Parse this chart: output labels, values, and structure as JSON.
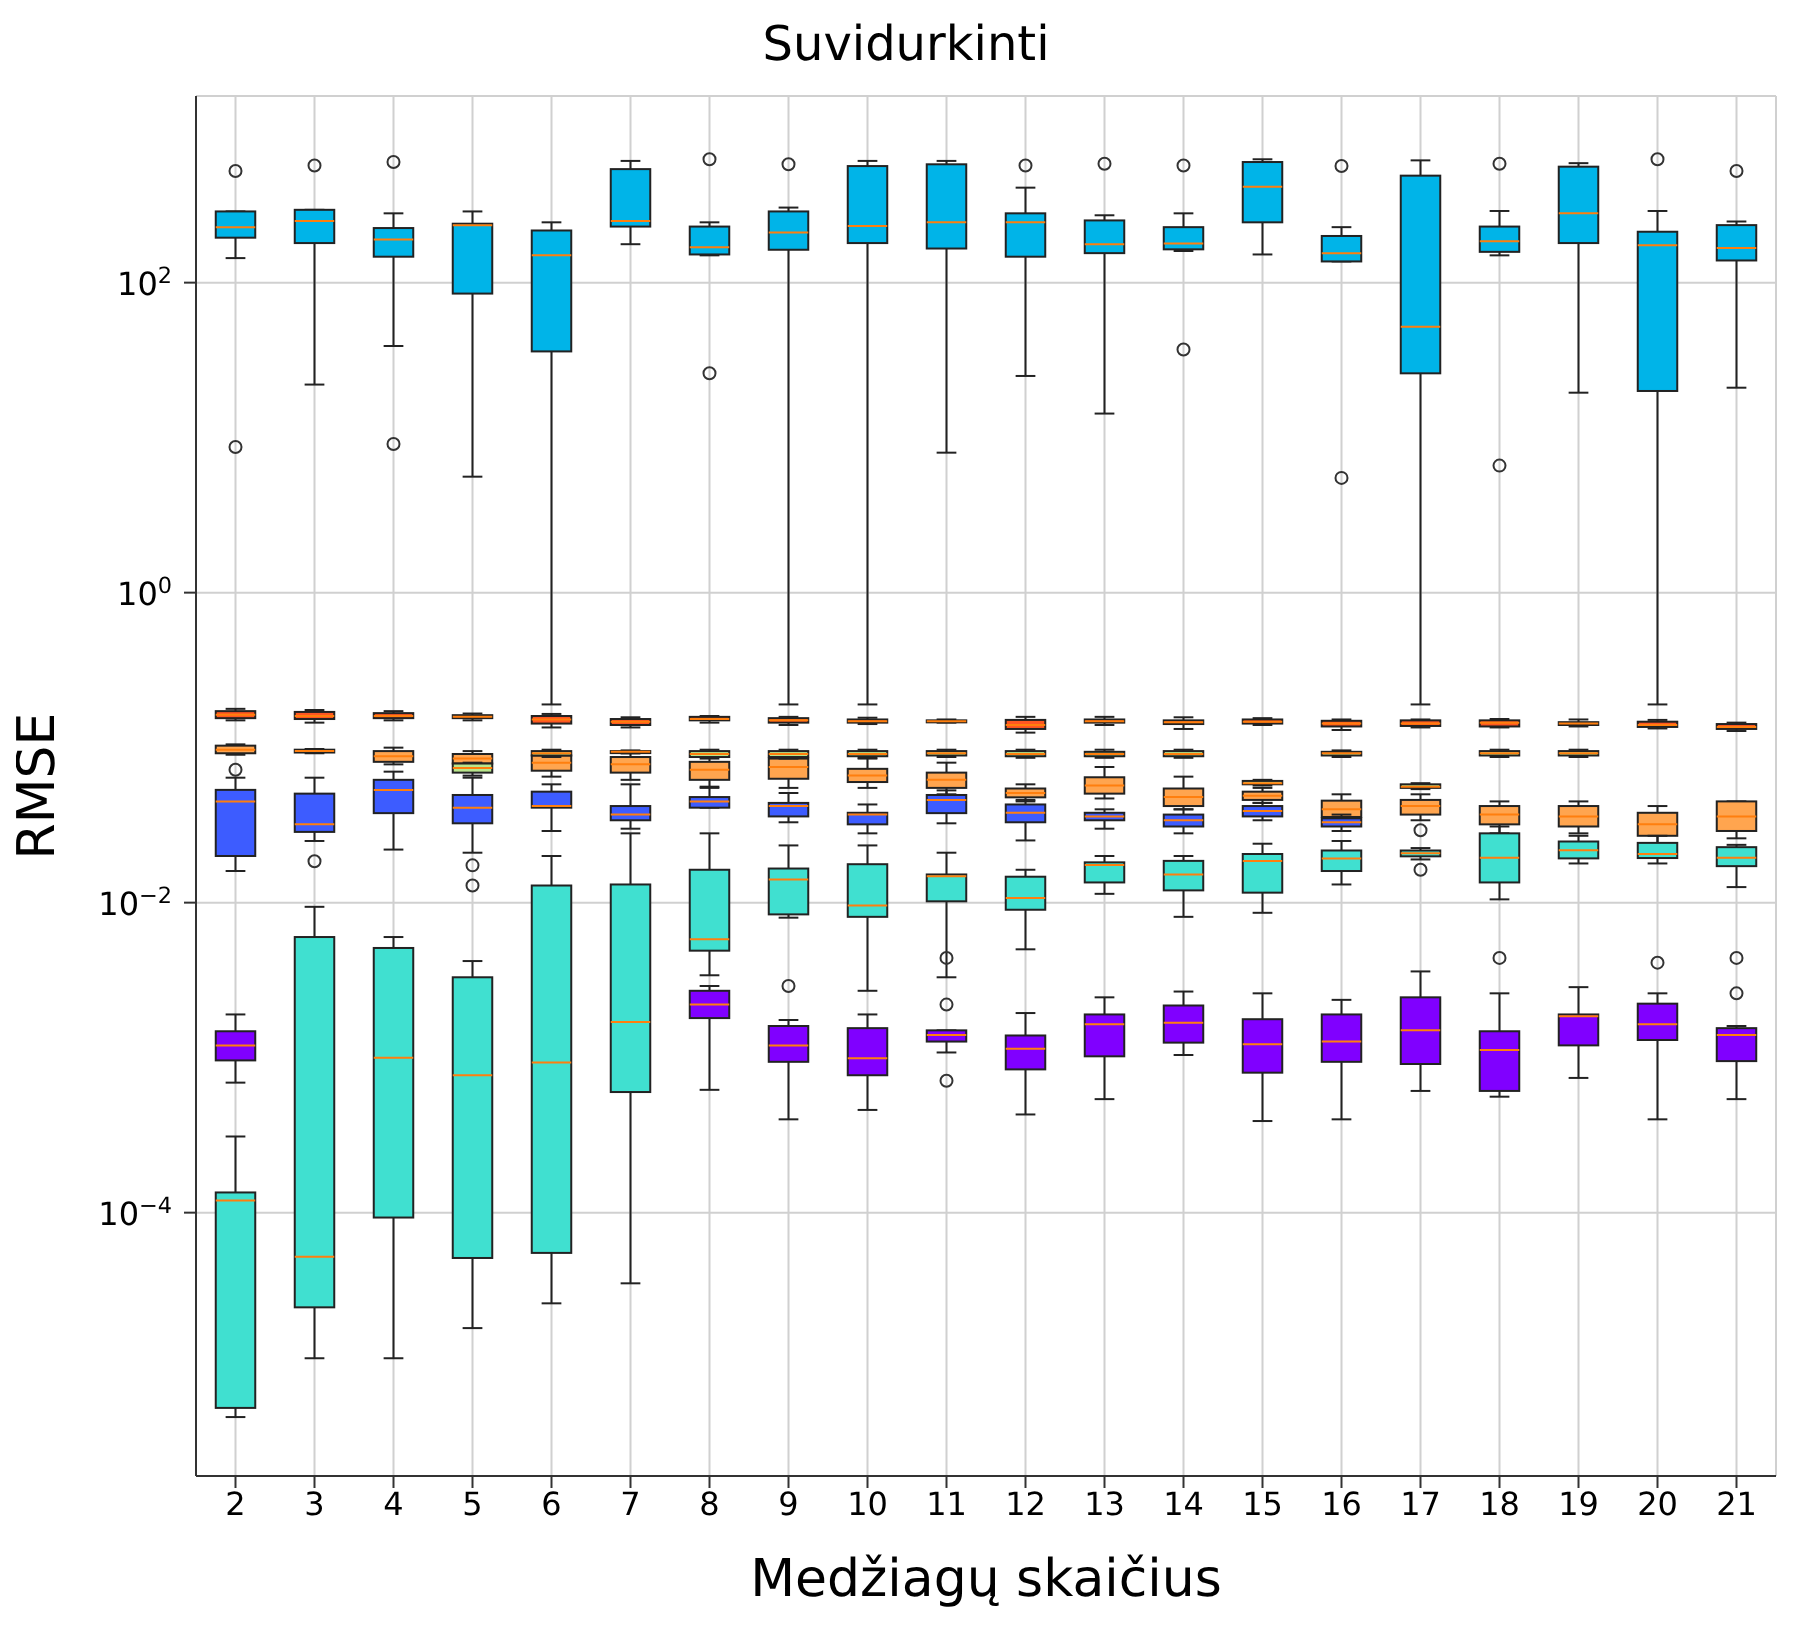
{
  "chart_data": {
    "type": "box",
    "title": "Suvidurkinti",
    "xlabel": "Medžiagų skaičius",
    "ylabel": "RMSE",
    "categories": [
      "2",
      "3",
      "4",
      "5",
      "6",
      "7",
      "8",
      "9",
      "10",
      "11",
      "12",
      "13",
      "14",
      "15",
      "16",
      "17",
      "18",
      "19",
      "20",
      "21"
    ],
    "log": "y",
    "grid": true,
    "ylim": [
      2e-06,
      1600
    ],
    "yticks": [
      {
        "value": 0.0001,
        "label": "10$^{−4}$"
      },
      {
        "value": 0.01,
        "label": "10$^{−2}$"
      },
      {
        "value": 1,
        "label": "10$^{0}$"
      },
      {
        "value": 100,
        "label": "10$^{2}$"
      }
    ],
    "series": [
      {
        "color": "#00b4e8",
        "boxes": [
          {
            "low": 144,
            "q1": 195,
            "median": 228,
            "q3": 288,
            "high": 288,
            "outliers": [
              525,
              8.7
            ]
          },
          {
            "low": 22,
            "q1": 180,
            "median": 250,
            "q3": 295,
            "high": 295,
            "outliers": [
              570
            ]
          },
          {
            "low": 39,
            "q1": 147,
            "median": 190,
            "q3": 225,
            "high": 280,
            "outliers": [
              600,
              9.1
            ]
          },
          {
            "low": 5.6,
            "q1": 85,
            "median": 235,
            "q3": 240,
            "high": 288
          },
          {
            "low": 0.19,
            "q1": 36,
            "median": 150,
            "q3": 217,
            "high": 245
          },
          {
            "low": 177,
            "q1": 230,
            "median": 250,
            "q3": 540,
            "high": 610
          },
          {
            "low": 150,
            "q1": 152,
            "median": 169,
            "q3": 230,
            "high": 245,
            "outliers": [
              625,
              26
            ]
          },
          {
            "low": 0.19,
            "q1": 163,
            "median": 211,
            "q3": 288,
            "high": 305,
            "outliers": [
              580
            ]
          },
          {
            "low": 0.19,
            "q1": 180,
            "median": 232,
            "q3": 565,
            "high": 610
          },
          {
            "low": 8,
            "q1": 166,
            "median": 245,
            "q3": 580,
            "high": 610
          },
          {
            "low": 25,
            "q1": 147,
            "median": 245,
            "q3": 280,
            "high": 410,
            "outliers": [
              570
            ]
          },
          {
            "low": 14.3,
            "q1": 155,
            "median": 177,
            "q3": 252,
            "high": 272,
            "outliers": [
              585
            ]
          },
          {
            "low": 160,
            "q1": 164,
            "median": 179,
            "q3": 228,
            "high": 280,
            "outliers": [
              570,
              37
            ]
          },
          {
            "low": 152,
            "q1": 245,
            "median": 415,
            "q3": 600,
            "high": 625
          },
          {
            "low": 137,
            "q1": 137,
            "median": 155,
            "q3": 200,
            "high": 228,
            "outliers": [
              565,
              5.5
            ]
          },
          {
            "low": 0.19,
            "q1": 26,
            "median": 52,
            "q3": 490,
            "high": 615
          },
          {
            "low": 150,
            "q1": 158,
            "median": 185,
            "q3": 230,
            "high": 290,
            "outliers": [
              585,
              6.6
            ]
          },
          {
            "low": 19.5,
            "q1": 180,
            "median": 280,
            "q3": 560,
            "high": 590
          },
          {
            "low": 0.19,
            "q1": 20,
            "median": 174,
            "q3": 213,
            "high": 290,
            "outliers": [
              625
            ]
          },
          {
            "low": 21,
            "q1": 139,
            "median": 167,
            "q3": 235,
            "high": 248,
            "outliers": [
              525
            ]
          }
        ]
      },
      {
        "color": "#ff5722",
        "boxes": [
          {
            "low": 0.15,
            "q1": 0.155,
            "median": 0.163,
            "q3": 0.172,
            "high": 0.178
          },
          {
            "low": 0.145,
            "q1": 0.153,
            "median": 0.16,
            "q3": 0.17,
            "high": 0.175
          },
          {
            "low": 0.15,
            "q1": 0.155,
            "median": 0.16,
            "q3": 0.167,
            "high": 0.172
          },
          {
            "low": 0.15,
            "q1": 0.155,
            "median": 0.158,
            "q3": 0.162,
            "high": 0.166
          },
          {
            "low": 0.135,
            "q1": 0.143,
            "median": 0.152,
            "q3": 0.16,
            "high": 0.165
          },
          {
            "low": 0.135,
            "q1": 0.14,
            "median": 0.147,
            "q3": 0.153,
            "high": 0.157
          },
          {
            "low": 0.145,
            "q1": 0.15,
            "median": 0.153,
            "q3": 0.158,
            "high": 0.16
          },
          {
            "low": 0.14,
            "q1": 0.145,
            "median": 0.15,
            "q3": 0.155,
            "high": 0.158
          },
          {
            "low": 0.142,
            "q1": 0.145,
            "median": 0.148,
            "q3": 0.152,
            "high": 0.156
          },
          {
            "low": 0.145,
            "q1": 0.147,
            "median": 0.148,
            "q3": 0.15,
            "high": 0.152
          },
          {
            "low": 0.125,
            "q1": 0.132,
            "median": 0.14,
            "q3": 0.151,
            "high": 0.158
          },
          {
            "low": 0.14,
            "q1": 0.145,
            "median": 0.148,
            "q3": 0.152,
            "high": 0.158
          },
          {
            "low": 0.132,
            "q1": 0.142,
            "median": 0.146,
            "q3": 0.15,
            "high": 0.157
          },
          {
            "low": 0.14,
            "q1": 0.143,
            "median": 0.147,
            "q3": 0.152,
            "high": 0.155
          },
          {
            "low": 0.13,
            "q1": 0.137,
            "median": 0.143,
            "q3": 0.149,
            "high": 0.152
          },
          {
            "low": 0.135,
            "q1": 0.138,
            "median": 0.143,
            "q3": 0.15,
            "high": 0.152
          },
          {
            "low": 0.135,
            "q1": 0.137,
            "median": 0.145,
            "q3": 0.15,
            "high": 0.153
          },
          {
            "low": 0.137,
            "q1": 0.14,
            "median": 0.143,
            "q3": 0.146,
            "high": 0.152
          },
          {
            "low": 0.133,
            "q1": 0.136,
            "median": 0.14,
            "q3": 0.147,
            "high": 0.151
          },
          {
            "low": 0.128,
            "q1": 0.132,
            "median": 0.136,
            "q3": 0.142,
            "high": 0.145
          }
        ]
      },
      {
        "color": "#ffa54f",
        "boxes": [
          {
            "low": 0.09,
            "q1": 0.092,
            "median": 0.097,
            "q3": 0.103,
            "high": 0.105,
            "outliers": [
              0.072
            ]
          },
          {
            "low": 0.092,
            "q1": 0.093,
            "median": 0.095,
            "q3": 0.097,
            "high": 0.098
          },
          {
            "low": 0.078,
            "q1": 0.081,
            "median": 0.088,
            "q3": 0.095,
            "high": 0.1
          },
          {
            "low": 0.077,
            "q1": 0.079,
            "median": 0.085,
            "q3": 0.091,
            "high": 0.095
          },
          {
            "low": 0.065,
            "q1": 0.071,
            "median": 0.08,
            "q3": 0.089,
            "high": 0.095
          },
          {
            "low": 0.062,
            "q1": 0.069,
            "median": 0.078,
            "q3": 0.087,
            "high": 0.092
          },
          {
            "low": 0.056,
            "q1": 0.062,
            "median": 0.072,
            "q3": 0.081,
            "high": 0.09
          },
          {
            "low": 0.055,
            "q1": 0.063,
            "median": 0.075,
            "q3": 0.085,
            "high": 0.09
          },
          {
            "low": 0.055,
            "q1": 0.06,
            "median": 0.066,
            "q3": 0.073,
            "high": 0.085
          },
          {
            "low": 0.05,
            "q1": 0.055,
            "median": 0.062,
            "q3": 0.069,
            "high": 0.08
          },
          {
            "low": 0.045,
            "q1": 0.0478,
            "median": 0.051,
            "q3": 0.0545,
            "high": 0.058
          },
          {
            "low": 0.047,
            "q1": 0.0505,
            "median": 0.057,
            "q3": 0.0644,
            "high": 0.075
          },
          {
            "low": 0.04,
            "q1": 0.042,
            "median": 0.048,
            "q3": 0.0545,
            "high": 0.065
          },
          {
            "low": 0.044,
            "q1": 0.046,
            "median": 0.049,
            "q3": 0.052,
            "high": 0.055
          },
          {
            "low": 0.034,
            "q1": 0.0357,
            "median": 0.04,
            "q3": 0.0455,
            "high": 0.05
          },
          {
            "low": 0.034,
            "q1": 0.037,
            "median": 0.042,
            "q3": 0.046,
            "high": 0.05
          },
          {
            "low": 0.028,
            "q1": 0.032,
            "median": 0.037,
            "q3": 0.042,
            "high": 0.045
          },
          {
            "low": 0.028,
            "q1": 0.031,
            "median": 0.036,
            "q3": 0.042,
            "high": 0.045
          },
          {
            "low": 0.024,
            "q1": 0.027,
            "median": 0.032,
            "q3": 0.038,
            "high": 0.042
          },
          {
            "low": 0.026,
            "q1": 0.029,
            "median": 0.036,
            "q3": 0.045,
            "high": 0.045
          }
        ]
      },
      {
        "color": "#b9e68c",
        "boxes": [
          null,
          null,
          null,
          {
            "low": 0.066,
            "q1": 0.069,
            "median": 0.074,
            "q3": 0.079,
            "high": 0.08
          },
          {
            "low": 0.087,
            "q1": 0.089,
            "median": 0.092,
            "q3": 0.095,
            "high": 0.097
          },
          {
            "low": 0.092,
            "q1": 0.093,
            "median": 0.094,
            "q3": 0.095,
            "high": 0.096
          },
          {
            "low": 0.085,
            "q1": 0.087,
            "median": 0.091,
            "q3": 0.095,
            "high": 0.097
          },
          {
            "low": 0.085,
            "q1": 0.087,
            "median": 0.091,
            "q3": 0.095,
            "high": 0.097
          },
          {
            "low": 0.086,
            "q1": 0.088,
            "median": 0.091,
            "q3": 0.095,
            "high": 0.097
          },
          {
            "low": 0.087,
            "q1": 0.089,
            "median": 0.092,
            "q3": 0.095,
            "high": 0.097
          },
          {
            "low": 0.086,
            "q1": 0.088,
            "median": 0.091,
            "q3": 0.095,
            "high": 0.097
          },
          {
            "low": 0.086,
            "q1": 0.088,
            "median": 0.091,
            "q3": 0.094,
            "high": 0.097
          },
          {
            "low": 0.086,
            "q1": 0.088,
            "median": 0.091,
            "q3": 0.095,
            "high": 0.097
          },
          {
            "low": 0.057,
            "q1": 0.058,
            "median": 0.059,
            "q3": 0.061,
            "high": 0.062
          },
          {
            "low": 0.087,
            "q1": 0.089,
            "median": 0.092,
            "q3": 0.094,
            "high": 0.096
          },
          {
            "low": 0.054,
            "q1": 0.055,
            "median": 0.056,
            "q3": 0.058,
            "high": 0.059
          },
          {
            "low": 0.087,
            "q1": 0.089,
            "median": 0.092,
            "q3": 0.095,
            "high": 0.097
          },
          {
            "low": 0.087,
            "q1": 0.089,
            "median": 0.092,
            "q3": 0.095,
            "high": 0.097
          },
          null,
          null
        ]
      },
      {
        "color": "#3d5cff",
        "boxes": [
          {
            "low": 0.016,
            "q1": 0.02,
            "median": 0.045,
            "q3": 0.0534,
            "high": 0.064
          },
          {
            "low": 0.025,
            "q1": 0.0286,
            "median": 0.032,
            "q3": 0.0505,
            "high": 0.064,
            "outliers": [
              0.0185
            ]
          },
          {
            "low": 0.022,
            "q1": 0.0378,
            "median": 0.0534,
            "q3": 0.062,
            "high": 0.07
          },
          {
            "low": 0.021,
            "q1": 0.0325,
            "median": 0.041,
            "q3": 0.0495,
            "high": 0.064
          },
          {
            "low": 0.029,
            "q1": 0.041,
            "median": 0.042,
            "q3": 0.052,
            "high": 0.058
          },
          {
            "low": 0.03,
            "q1": 0.034,
            "median": 0.037,
            "q3": 0.042,
            "high": 0.058
          },
          {
            "low": 0.041,
            "q1": 0.041,
            "median": 0.045,
            "q3": 0.048,
            "high": 0.055
          },
          {
            "low": 0.033,
            "q1": 0.036,
            "median": 0.042,
            "q3": 0.044,
            "high": 0.051
          },
          {
            "low": 0.028,
            "q1": 0.032,
            "median": 0.037,
            "q3": 0.038,
            "high": 0.043
          },
          {
            "low": 0.0325,
            "q1": 0.0378,
            "median": 0.046,
            "q3": 0.0495,
            "high": 0.053
          },
          {
            "low": 0.0252,
            "q1": 0.033,
            "median": 0.038,
            "q3": 0.043,
            "high": 0.046
          },
          {
            "low": 0.03,
            "q1": 0.034,
            "median": 0.036,
            "q3": 0.038,
            "high": 0.04
          },
          {
            "low": 0.028,
            "q1": 0.031,
            "median": 0.034,
            "q3": 0.037,
            "high": 0.04
          },
          {
            "low": 0.034,
            "q1": 0.036,
            "median": 0.039,
            "q3": 0.042,
            "high": 0.044
          },
          {
            "low": 0.029,
            "q1": 0.031,
            "median": 0.033,
            "q3": 0.035,
            "high": 0.037
          },
          null,
          null,
          null,
          null,
          null
        ]
      },
      {
        "color": "#40e0d0",
        "boxes": [
          {
            "low": 4.8e-06,
            "q1": 5.5e-06,
            "median": 0.00012,
            "q3": 0.000135,
            "high": 0.00031
          },
          {
            "low": 1.15e-05,
            "q1": 2.45e-05,
            "median": 5.2e-05,
            "q3": 0.006,
            "high": 0.0094
          },
          {
            "low": 1.15e-05,
            "q1": 9.3e-05,
            "median": 0.001,
            "q3": 0.0051,
            "high": 0.006
          },
          {
            "low": 1.8e-05,
            "q1": 5.1e-05,
            "median": 0.00077,
            "q3": 0.0033,
            "high": 0.0042,
            "outliers": [
              0.0174,
              0.0129
            ]
          },
          {
            "low": 2.6e-05,
            "q1": 5.5e-05,
            "median": 0.00093,
            "q3": 0.0129,
            "high": 0.02
          },
          {
            "low": 3.5e-05,
            "q1": 0.0006,
            "median": 0.0017,
            "q3": 0.0131,
            "high": 0.028
          },
          {
            "low": 0.0034,
            "q1": 0.0049,
            "median": 0.0058,
            "q3": 0.0163,
            "high": 0.028
          },
          {
            "low": 0.008,
            "q1": 0.0084,
            "median": 0.0141,
            "q3": 0.0166,
            "high": 0.0234,
            "outliers": [
              0.0029
            ]
          },
          {
            "low": 0.0027,
            "q1": 0.0081,
            "median": 0.0096,
            "q3": 0.0177,
            "high": 0.0234
          },
          {
            "low": 0.0033,
            "q1": 0.0102,
            "median": 0.0148,
            "q3": 0.0152,
            "high": 0.021
          },
          {
            "low": 0.005,
            "q1": 0.009,
            "median": 0.0107,
            "q3": 0.0147,
            "high": 0.0163
          },
          {
            "low": 0.0114,
            "q1": 0.0135,
            "median": 0.0175,
            "q3": 0.0182,
            "high": 0.02
          },
          {
            "low": 0.0081,
            "q1": 0.012,
            "median": 0.0152,
            "q3": 0.0186,
            "high": 0.02
          },
          {
            "low": 0.0086,
            "q1": 0.0116,
            "median": 0.0186,
            "q3": 0.0206,
            "high": 0.024
          },
          {
            "low": 0.0131,
            "q1": 0.016,
            "median": 0.0193,
            "q3": 0.0217,
            "high": 0.025
          },
          {
            "low": 0.019,
            "q1": 0.0199,
            "median": 0.0208,
            "q3": 0.0217,
            "high": 0.0225,
            "outliers": [
              0.0293,
              0.0163
            ]
          },
          {
            "low": 0.0105,
            "q1": 0.0135,
            "median": 0.0195,
            "q3": 0.028,
            "high": 0.031
          },
          {
            "low": 0.0179,
            "q1": 0.0193,
            "median": 0.0218,
            "q3": 0.0248,
            "high": 0.027
          },
          {
            "low": 0.0179,
            "q1": 0.0194,
            "median": 0.0206,
            "q3": 0.0243,
            "high": 0.027
          },
          {
            "low": 0.0126,
            "q1": 0.0172,
            "median": 0.0195,
            "q3": 0.0228,
            "high": 0.0236
          }
        ]
      },
      {
        "color": "#8000ff",
        "boxes": [
          {
            "low": 0.00069,
            "q1": 0.00096,
            "median": 0.0012,
            "q3": 0.00148,
            "high": 0.0019
          },
          null,
          null,
          null,
          null,
          null,
          {
            "low": 0.00062,
            "q1": 0.0018,
            "median": 0.0022,
            "q3": 0.0027,
            "high": 0.0029
          },
          {
            "low": 0.0004,
            "q1": 0.00094,
            "median": 0.0012,
            "q3": 0.0016,
            "high": 0.00175
          },
          {
            "low": 0.00046,
            "q1": 0.00077,
            "median": 0.00099,
            "q3": 0.00155,
            "high": 0.0019
          },
          {
            "low": 0.00108,
            "q1": 0.00127,
            "median": 0.0014,
            "q3": 0.0015,
            "high": 0.0015,
            "outliers": [
              0.0044,
              0.0022,
              0.00071
            ]
          },
          {
            "low": 0.00043,
            "q1": 0.00084,
            "median": 0.00114,
            "q3": 0.00139,
            "high": 0.00194
          },
          {
            "low": 0.00054,
            "q1": 0.00102,
            "median": 0.00164,
            "q3": 0.0019,
            "high": 0.00245
          },
          {
            "low": 0.00104,
            "q1": 0.00125,
            "median": 0.00168,
            "q3": 0.00217,
            "high": 0.00267
          },
          {
            "low": 0.00039,
            "q1": 0.0008,
            "median": 0.00122,
            "q3": 0.00177,
            "high": 0.0026
          },
          {
            "low": 0.0004,
            "q1": 0.00094,
            "median": 0.00127,
            "q3": 0.0019,
            "high": 0.00236
          },
          {
            "low": 0.00061,
            "q1": 0.00091,
            "median": 0.0015,
            "q3": 0.00245,
            "high": 0.0036
          },
          {
            "low": 0.00056,
            "q1": 0.00061,
            "median": 0.00112,
            "q3": 0.00148,
            "high": 0.0026,
            "outliers": [
              0.0044
            ]
          },
          {
            "low": 0.00074,
            "q1": 0.0012,
            "median": 0.00185,
            "q3": 0.0019,
            "high": 0.00285
          },
          {
            "low": 0.0004,
            "q1": 0.0013,
            "median": 0.00164,
            "q3": 0.00223,
            "high": 0.0026,
            "outliers": [
              0.0041
            ]
          },
          {
            "low": 0.00054,
            "q1": 0.00095,
            "median": 0.0014,
            "q3": 0.00155,
            "high": 0.0016,
            "outliers": [
              0.0044,
              0.0026
            ]
          }
        ]
      }
    ]
  }
}
